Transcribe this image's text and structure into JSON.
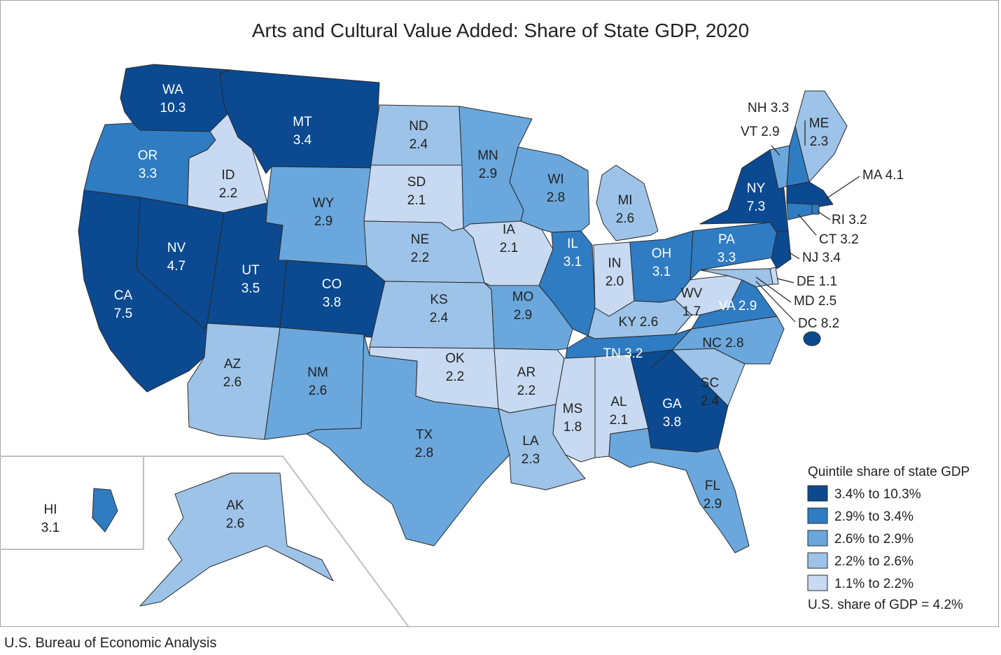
{
  "title": "Arts and Cultural Value Added: Share of State GDP, 2020",
  "source": "U.S. Bureau of Economic Analysis",
  "colors": {
    "q1": "#0b4a91",
    "q2": "#2f7cc3",
    "q3": "#6aa7dc",
    "q4": "#9dc3e8",
    "q5": "#c8daf2",
    "border": "#2a2a2a"
  },
  "legend": {
    "title": "Quintile share of state GDP",
    "items": [
      {
        "label": "3.4% to 10.3%",
        "color": "#0b4a91"
      },
      {
        "label": "2.9% to 3.4%",
        "color": "#2f7cc3"
      },
      {
        "label": "2.6% to 2.9%",
        "color": "#6aa7dc"
      },
      {
        "label": "2.2% to 2.6%",
        "color": "#9dc3e8"
      },
      {
        "label": "1.1% to 2.2%",
        "color": "#c8daf2"
      }
    ],
    "us_share": "U.S. share of GDP = 4.2%"
  },
  "states": [
    {
      "abbr": "WA",
      "value": "10.3",
      "quintile": "q1"
    },
    {
      "abbr": "OR",
      "value": "3.3",
      "quintile": "q2"
    },
    {
      "abbr": "CA",
      "value": "7.5",
      "quintile": "q1"
    },
    {
      "abbr": "NV",
      "value": "4.7",
      "quintile": "q1"
    },
    {
      "abbr": "ID",
      "value": "2.2",
      "quintile": "q5"
    },
    {
      "abbr": "MT",
      "value": "3.4",
      "quintile": "q1"
    },
    {
      "abbr": "WY",
      "value": "2.9",
      "quintile": "q3"
    },
    {
      "abbr": "UT",
      "value": "3.5",
      "quintile": "q1"
    },
    {
      "abbr": "CO",
      "value": "3.8",
      "quintile": "q1"
    },
    {
      "abbr": "AZ",
      "value": "2.6",
      "quintile": "q4"
    },
    {
      "abbr": "NM",
      "value": "2.6",
      "quintile": "q3"
    },
    {
      "abbr": "ND",
      "value": "2.4",
      "quintile": "q4"
    },
    {
      "abbr": "SD",
      "value": "2.1",
      "quintile": "q5"
    },
    {
      "abbr": "NE",
      "value": "2.2",
      "quintile": "q4"
    },
    {
      "abbr": "KS",
      "value": "2.4",
      "quintile": "q4"
    },
    {
      "abbr": "OK",
      "value": "2.2",
      "quintile": "q5"
    },
    {
      "abbr": "TX",
      "value": "2.8",
      "quintile": "q3"
    },
    {
      "abbr": "MN",
      "value": "2.9",
      "quintile": "q3"
    },
    {
      "abbr": "IA",
      "value": "2.1",
      "quintile": "q5"
    },
    {
      "abbr": "MO",
      "value": "2.9",
      "quintile": "q3"
    },
    {
      "abbr": "AR",
      "value": "2.2",
      "quintile": "q5"
    },
    {
      "abbr": "LA",
      "value": "2.3",
      "quintile": "q4"
    },
    {
      "abbr": "WI",
      "value": "2.8",
      "quintile": "q3"
    },
    {
      "abbr": "IL",
      "value": "3.1",
      "quintile": "q2"
    },
    {
      "abbr": "MI",
      "value": "2.6",
      "quintile": "q4"
    },
    {
      "abbr": "IN",
      "value": "2.0",
      "quintile": "q5"
    },
    {
      "abbr": "OH",
      "value": "3.1",
      "quintile": "q2"
    },
    {
      "abbr": "KY",
      "value": "2.6",
      "quintile": "q4"
    },
    {
      "abbr": "TN",
      "value": "3.2",
      "quintile": "q2"
    },
    {
      "abbr": "MS",
      "value": "1.8",
      "quintile": "q5"
    },
    {
      "abbr": "AL",
      "value": "2.1",
      "quintile": "q5"
    },
    {
      "abbr": "GA",
      "value": "3.8",
      "quintile": "q1"
    },
    {
      "abbr": "FL",
      "value": "2.9",
      "quintile": "q3"
    },
    {
      "abbr": "SC",
      "value": "2.4",
      "quintile": "q4"
    },
    {
      "abbr": "NC",
      "value": "2.8",
      "quintile": "q3"
    },
    {
      "abbr": "VA",
      "value": "2.9",
      "quintile": "q2"
    },
    {
      "abbr": "WV",
      "value": "1.7",
      "quintile": "q5"
    },
    {
      "abbr": "PA",
      "value": "3.3",
      "quintile": "q2"
    },
    {
      "abbr": "NY",
      "value": "7.3",
      "quintile": "q1"
    },
    {
      "abbr": "VT",
      "value": "2.9",
      "quintile": "q3"
    },
    {
      "abbr": "NH",
      "value": "3.3",
      "quintile": "q2"
    },
    {
      "abbr": "ME",
      "value": "2.3",
      "quintile": "q4"
    },
    {
      "abbr": "MA",
      "value": "4.1",
      "quintile": "q1"
    },
    {
      "abbr": "RI",
      "value": "3.2",
      "quintile": "q2"
    },
    {
      "abbr": "CT",
      "value": "3.2",
      "quintile": "q2"
    },
    {
      "abbr": "NJ",
      "value": "3.4",
      "quintile": "q1"
    },
    {
      "abbr": "DE",
      "value": "1.1",
      "quintile": "q5"
    },
    {
      "abbr": "MD",
      "value": "2.5",
      "quintile": "q4"
    },
    {
      "abbr": "DC",
      "value": "8.2",
      "quintile": "q1"
    },
    {
      "abbr": "HI",
      "value": "3.1",
      "quintile": "q2"
    },
    {
      "abbr": "AK",
      "value": "2.6",
      "quintile": "q4"
    }
  ]
}
